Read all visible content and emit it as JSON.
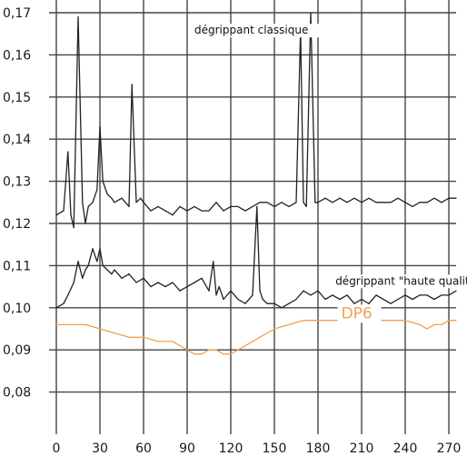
{
  "chart_data": {
    "type": "line",
    "title": "",
    "xlabel": "",
    "ylabel": "",
    "xlim": [
      0,
      275
    ],
    "ylim": [
      0.07,
      0.17
    ],
    "grid": true,
    "x_ticks": [
      0,
      30,
      60,
      90,
      120,
      150,
      180,
      210,
      240,
      270
    ],
    "x_tick_labels": [
      "0",
      "30",
      "60",
      "90",
      "120",
      "150",
      "180",
      "210",
      "240",
      "270"
    ],
    "y_ticks": [
      0.08,
      0.09,
      0.1,
      0.11,
      0.12,
      0.13,
      0.14,
      0.15,
      0.16,
      0.17
    ],
    "y_tick_labels": [
      "0,08",
      "0,09",
      "0,10",
      "0,11",
      "0,12",
      "0,13",
      "0,14",
      "0,15",
      "0,16",
      "0,17"
    ],
    "series": [
      {
        "name": "dégrippant classique",
        "color": "#222222",
        "x": [
          0,
          5,
          8,
          10,
          12,
          15,
          18,
          20,
          22,
          25,
          28,
          30,
          32,
          35,
          38,
          40,
          45,
          50,
          52,
          55,
          58,
          60,
          65,
          70,
          75,
          80,
          85,
          90,
          95,
          100,
          105,
          110,
          115,
          120,
          125,
          130,
          135,
          140,
          145,
          150,
          155,
          160,
          165,
          168,
          170,
          172,
          175,
          178,
          180,
          185,
          190,
          195,
          200,
          205,
          210,
          215,
          220,
          225,
          230,
          235,
          240,
          245,
          250,
          255,
          260,
          265,
          270,
          275
        ],
        "values": [
          0.122,
          0.123,
          0.137,
          0.122,
          0.119,
          0.169,
          0.125,
          0.12,
          0.124,
          0.125,
          0.128,
          0.143,
          0.13,
          0.127,
          0.126,
          0.125,
          0.126,
          0.124,
          0.153,
          0.125,
          0.126,
          0.125,
          0.123,
          0.124,
          0.123,
          0.122,
          0.124,
          0.123,
          0.124,
          0.123,
          0.123,
          0.125,
          0.123,
          0.124,
          0.124,
          0.123,
          0.124,
          0.125,
          0.125,
          0.124,
          0.125,
          0.124,
          0.125,
          0.166,
          0.125,
          0.124,
          0.17,
          0.125,
          0.125,
          0.126,
          0.125,
          0.126,
          0.125,
          0.126,
          0.125,
          0.126,
          0.125,
          0.125,
          0.125,
          0.126,
          0.125,
          0.124,
          0.125,
          0.125,
          0.126,
          0.125,
          0.126,
          0.126
        ]
      },
      {
        "name": "dégrippant \"haute qualité\"",
        "color": "#222222",
        "x": [
          0,
          5,
          8,
          12,
          15,
          18,
          20,
          22,
          25,
          28,
          30,
          32,
          35,
          38,
          40,
          45,
          50,
          55,
          60,
          65,
          70,
          75,
          80,
          85,
          90,
          95,
          100,
          105,
          108,
          110,
          112,
          115,
          120,
          125,
          130,
          135,
          138,
          140,
          142,
          145,
          150,
          155,
          160,
          165,
          170,
          175,
          180,
          185,
          190,
          195,
          200,
          205,
          210,
          215,
          220,
          225,
          230,
          235,
          240,
          245,
          250,
          255,
          260,
          265,
          270,
          275
        ],
        "values": [
          0.1,
          0.101,
          0.103,
          0.106,
          0.111,
          0.107,
          0.109,
          0.11,
          0.114,
          0.111,
          0.114,
          0.11,
          0.109,
          0.108,
          0.109,
          0.107,
          0.108,
          0.106,
          0.107,
          0.105,
          0.106,
          0.105,
          0.106,
          0.104,
          0.105,
          0.106,
          0.107,
          0.104,
          0.111,
          0.103,
          0.105,
          0.102,
          0.104,
          0.102,
          0.101,
          0.103,
          0.124,
          0.104,
          0.102,
          0.101,
          0.101,
          0.1,
          0.101,
          0.102,
          0.104,
          0.103,
          0.104,
          0.102,
          0.103,
          0.102,
          0.103,
          0.101,
          0.102,
          0.101,
          0.103,
          0.102,
          0.101,
          0.102,
          0.103,
          0.102,
          0.103,
          0.103,
          0.102,
          0.103,
          0.103,
          0.104
        ]
      },
      {
        "name": "DP6",
        "color": "#f0a050",
        "x": [
          0,
          10,
          20,
          30,
          40,
          50,
          60,
          70,
          80,
          90,
          95,
          100,
          105,
          110,
          115,
          120,
          125,
          130,
          135,
          140,
          150,
          160,
          170,
          180,
          190,
          200,
          210,
          220,
          230,
          240,
          250,
          255,
          260,
          265,
          270,
          275
        ],
        "values": [
          0.096,
          0.096,
          0.096,
          0.095,
          0.094,
          0.093,
          0.093,
          0.092,
          0.092,
          0.09,
          0.089,
          0.089,
          0.09,
          0.09,
          0.089,
          0.089,
          0.09,
          0.091,
          0.092,
          0.093,
          0.095,
          0.096,
          0.097,
          0.097,
          0.097,
          0.097,
          0.097,
          0.097,
          0.097,
          0.097,
          0.096,
          0.095,
          0.096,
          0.096,
          0.097,
          0.097
        ]
      }
    ],
    "annotations": [
      {
        "text": "dégrippant classique",
        "x": 95,
        "y": 0.165,
        "color": "#111111"
      },
      {
        "text": "dégrippant \"haute qualité\"",
        "x": 192,
        "y": 0.1055,
        "color": "#111111"
      },
      {
        "text": "DP6",
        "x": 196,
        "y": 0.0975,
        "color": "#f0a050"
      }
    ]
  }
}
